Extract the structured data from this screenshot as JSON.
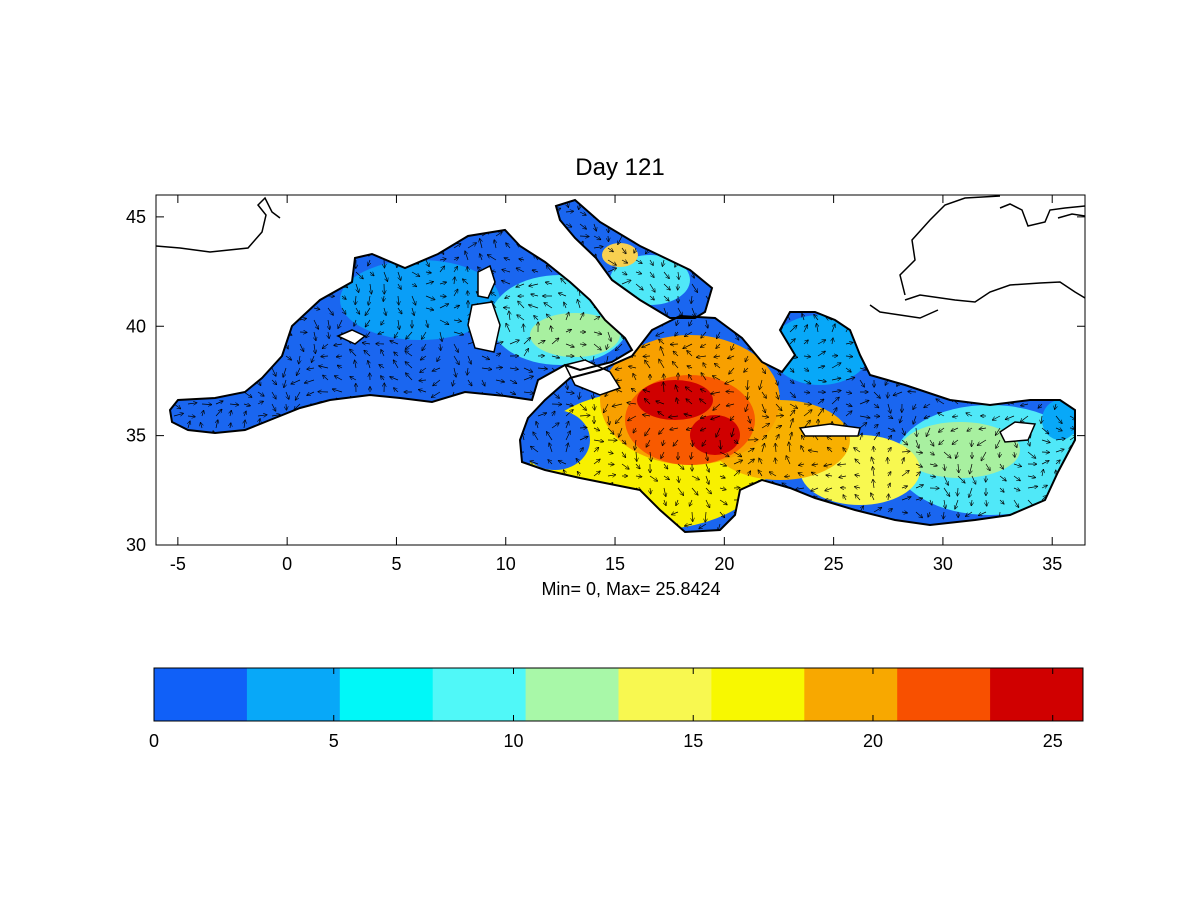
{
  "title": "Day 121",
  "map": {
    "xlim": [
      -6,
      36.5
    ],
    "ylim": [
      30,
      46
    ],
    "xticks": [
      -5,
      0,
      5,
      10,
      15,
      20,
      25,
      30,
      35
    ],
    "yticks": [
      30,
      35,
      40,
      45
    ],
    "sea_base_color": "#1a66f0"
  },
  "stats_label": "Min= 0,  Max= 25.8424",
  "colorbar": {
    "min": 0,
    "max": 25.8424,
    "ticks": [
      0,
      5,
      10,
      15,
      20,
      25
    ],
    "colors": [
      "#1060f8",
      "#08a8f8",
      "#00f8f8",
      "#50f8f8",
      "#a8f8a8",
      "#f8f850",
      "#f8f800",
      "#f8a800",
      "#f85000",
      "#d00000"
    ]
  }
}
